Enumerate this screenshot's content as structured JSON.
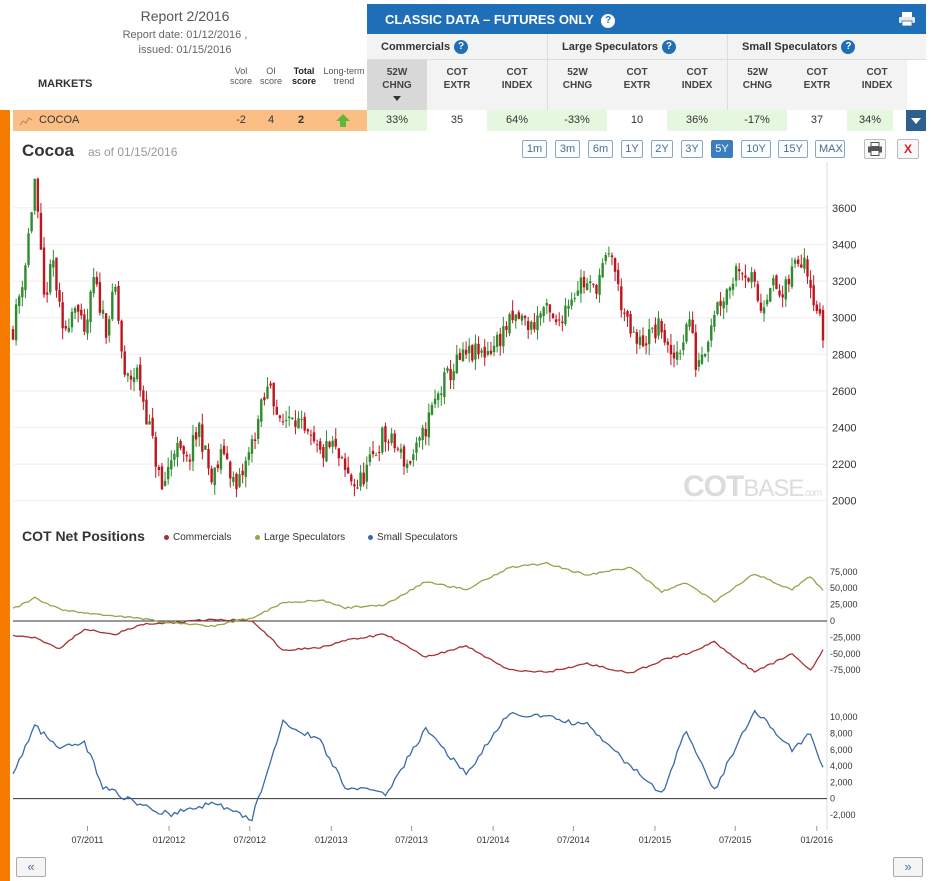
{
  "header": {
    "report_title": "Report 2/2016",
    "report_date": "Report date: 01/12/2016 ,",
    "issued": "issued: 01/15/2016",
    "classic_label": "CLASSIC DATA – FUTURES ONLY",
    "markets_label": "MARKETS"
  },
  "score_headers": {
    "vol": [
      "Vol",
      "score"
    ],
    "oi": [
      "OI",
      "score"
    ],
    "total": [
      "Total",
      "score"
    ],
    "trend": [
      "Long-term",
      "trend"
    ]
  },
  "groups": [
    "Commercials",
    "Large Speculators",
    "Small Speculators"
  ],
  "columns": [
    [
      "52W",
      "CHNG"
    ],
    [
      "COT",
      "EXTR"
    ],
    [
      "COT",
      "INDEX"
    ],
    [
      "52W",
      "CHNG"
    ],
    [
      "COT",
      "EXTR"
    ],
    [
      "COT",
      "INDEX"
    ],
    [
      "52W",
      "CHNG"
    ],
    [
      "COT",
      "EXTR"
    ],
    [
      "COT",
      "INDEX"
    ]
  ],
  "row": {
    "market": "COCOA",
    "vol_score": "-2",
    "oi_score": "4",
    "total_score": "2",
    "values": [
      "33%",
      "35",
      "64%",
      "-33%",
      "10",
      "36%",
      "-17%",
      "37",
      "34%"
    ]
  },
  "chart": {
    "title": "Cocoa",
    "as_of": "as of 01/15/2016",
    "ranges": [
      "1m",
      "3m",
      "6m",
      "1Y",
      "2Y",
      "3Y",
      "5Y",
      "10Y",
      "15Y",
      "MAX"
    ],
    "active_range": "5Y",
    "close_label": "X",
    "watermark_left": "COT",
    "watermark_right": "BASE",
    "watermark_suffix": ".com",
    "cot_title": "COT Net Positions",
    "nav_prev": "«",
    "nav_next": "»"
  },
  "colors": {
    "header_blue": "#1e6fb8",
    "row_orange": "#fbbf85",
    "side_orange": "#f57c00",
    "up_candle": "#2e8b2e",
    "down_candle": "#c0141e",
    "commercials": "#a83232",
    "large_specs": "#8fa84a",
    "small_specs": "#3b6aa8"
  },
  "chart_data": [
    {
      "type": "candlestick",
      "title": "Cocoa",
      "ylim": [
        1960,
        3780
      ],
      "yticks": [
        2000,
        2200,
        2400,
        2600,
        2800,
        3000,
        3200,
        3400,
        3600
      ],
      "x_start": "2011-01-14",
      "x_end": "2016-01-15",
      "points_per_week": 1,
      "anchors": [
        [
          "2011-01-14",
          2940
        ],
        [
          "2011-02-11",
          3300
        ],
        [
          "2011-03-04",
          3750
        ],
        [
          "2011-03-25",
          3100
        ],
        [
          "2011-04-15",
          3300
        ],
        [
          "2011-05-06",
          2900
        ],
        [
          "2011-06-03",
          3100
        ],
        [
          "2011-06-24",
          2880
        ],
        [
          "2011-07-15",
          3200
        ],
        [
          "2011-08-12",
          2950
        ],
        [
          "2011-09-02",
          3150
        ],
        [
          "2011-09-23",
          2650
        ],
        [
          "2011-10-21",
          2700
        ],
        [
          "2011-11-18",
          2400
        ],
        [
          "2011-12-16",
          2050
        ],
        [
          "2012-01-13",
          2300
        ],
        [
          "2012-02-10",
          2200
        ],
        [
          "2012-03-09",
          2400
        ],
        [
          "2012-04-06",
          2100
        ],
        [
          "2012-05-04",
          2280
        ],
        [
          "2012-06-01",
          2050
        ],
        [
          "2012-06-29",
          2250
        ],
        [
          "2012-07-27",
          2500
        ],
        [
          "2012-08-17",
          2650
        ],
        [
          "2012-09-07",
          2400
        ],
        [
          "2012-10-05",
          2500
        ],
        [
          "2012-11-02",
          2350
        ],
        [
          "2012-12-07",
          2250
        ],
        [
          "2013-01-04",
          2300
        ],
        [
          "2013-02-01",
          2150
        ],
        [
          "2013-03-01",
          2080
        ],
        [
          "2013-03-29",
          2200
        ],
        [
          "2013-04-26",
          2350
        ],
        [
          "2013-05-24",
          2300
        ],
        [
          "2013-06-21",
          2200
        ],
        [
          "2013-07-19",
          2300
        ],
        [
          "2013-08-16",
          2500
        ],
        [
          "2013-09-13",
          2650
        ],
        [
          "2013-10-11",
          2750
        ],
        [
          "2013-11-08",
          2800
        ],
        [
          "2013-12-06",
          2800
        ],
        [
          "2014-01-03",
          2850
        ],
        [
          "2014-01-31",
          2950
        ],
        [
          "2014-02-28",
          3000
        ],
        [
          "2014-03-28",
          2950
        ],
        [
          "2014-04-25",
          3050
        ],
        [
          "2014-05-23",
          2950
        ],
        [
          "2014-06-20",
          3100
        ],
        [
          "2014-07-18",
          3200
        ],
        [
          "2014-08-15",
          3150
        ],
        [
          "2014-09-12",
          3300
        ],
        [
          "2014-09-26",
          3350
        ],
        [
          "2014-10-10",
          3150
        ],
        [
          "2014-10-31",
          2950
        ],
        [
          "2014-11-21",
          2850
        ],
        [
          "2014-12-19",
          2900
        ],
        [
          "2015-01-16",
          2950
        ],
        [
          "2015-02-06",
          2750
        ],
        [
          "2015-02-27",
          2850
        ],
        [
          "2015-03-20",
          3000
        ],
        [
          "2015-04-03",
          2750
        ],
        [
          "2015-04-24",
          2850
        ],
        [
          "2015-05-15",
          3050
        ],
        [
          "2015-06-12",
          3150
        ],
        [
          "2015-07-10",
          3300
        ],
        [
          "2015-08-07",
          3200
        ],
        [
          "2015-08-28",
          3050
        ],
        [
          "2015-09-18",
          3200
        ],
        [
          "2015-10-16",
          3100
        ],
        [
          "2015-11-13",
          3300
        ],
        [
          "2015-12-04",
          3350
        ],
        [
          "2015-12-18",
          3200
        ],
        [
          "2016-01-08",
          2980
        ],
        [
          "2016-01-15",
          2900
        ]
      ],
      "up_color": "#2e8b2e",
      "down_color": "#c0141e",
      "grid": true
    },
    {
      "type": "line",
      "title": "COT Net Positions",
      "ylim": [
        -90000,
        90000
      ],
      "yticks": [
        -75000,
        -50000,
        -25000,
        0,
        25000,
        50000,
        75000
      ],
      "zero_line": true,
      "series": [
        {
          "name": "Commercials",
          "color": "#a83232",
          "anchors": [
            [
              "2011-01-14",
              -22000
            ],
            [
              "2011-03-04",
              -25000
            ],
            [
              "2011-04-29",
              -42000
            ],
            [
              "2011-06-24",
              -12000
            ],
            [
              "2011-09-02",
              -20000
            ],
            [
              "2011-11-04",
              -5000
            ],
            [
              "2012-01-06",
              -3000
            ],
            [
              "2012-04-06",
              2000
            ],
            [
              "2012-07-06",
              1000
            ],
            [
              "2012-09-14",
              -45000
            ],
            [
              "2012-12-07",
              -40000
            ],
            [
              "2013-02-01",
              -30000
            ],
            [
              "2013-05-03",
              -20000
            ],
            [
              "2013-08-02",
              -55000
            ],
            [
              "2013-11-01",
              -38000
            ],
            [
              "2014-02-07",
              -75000
            ],
            [
              "2014-05-02",
              -78000
            ],
            [
              "2014-08-01",
              -65000
            ],
            [
              "2014-11-07",
              -80000
            ],
            [
              "2015-01-16",
              -60000
            ],
            [
              "2015-03-13",
              -50000
            ],
            [
              "2015-05-15",
              -32000
            ],
            [
              "2015-08-14",
              -78000
            ],
            [
              "2015-11-06",
              -50000
            ],
            [
              "2015-12-18",
              -75000
            ],
            [
              "2016-01-15",
              -44000
            ]
          ]
        },
        {
          "name": "Large Speculators",
          "color": "#8fa84a",
          "anchors": [
            [
              "2011-01-14",
              18000
            ],
            [
              "2011-03-04",
              35000
            ],
            [
              "2011-04-29",
              18000
            ],
            [
              "2011-06-24",
              12000
            ],
            [
              "2011-09-02",
              8000
            ],
            [
              "2011-11-04",
              3000
            ],
            [
              "2012-01-06",
              -2000
            ],
            [
              "2012-04-06",
              -8000
            ],
            [
              "2012-07-06",
              5000
            ],
            [
              "2012-09-14",
              28000
            ],
            [
              "2012-12-07",
              32000
            ],
            [
              "2013-02-01",
              20000
            ],
            [
              "2013-05-03",
              25000
            ],
            [
              "2013-08-02",
              60000
            ],
            [
              "2013-11-01",
              48000
            ],
            [
              "2014-02-07",
              82000
            ],
            [
              "2014-05-02",
              88000
            ],
            [
              "2014-08-01",
              70000
            ],
            [
              "2014-11-07",
              82000
            ],
            [
              "2015-01-16",
              45000
            ],
            [
              "2015-03-13",
              58000
            ],
            [
              "2015-05-15",
              30000
            ],
            [
              "2015-08-14",
              72000
            ],
            [
              "2015-11-06",
              48000
            ],
            [
              "2015-12-18",
              68000
            ],
            [
              "2016-01-15",
              47000
            ]
          ]
        },
        {
          "name": "Small Speculators",
          "color": "#3b6aa8",
          "anchors": [
            [
              "2011-01-14",
              3000
            ],
            [
              "2011-03-04",
              9000
            ],
            [
              "2011-04-29",
              6000
            ],
            [
              "2011-06-24",
              7000
            ],
            [
              "2011-08-05",
              1500
            ],
            [
              "2011-11-04",
              -1000
            ],
            [
              "2012-01-06",
              -2000
            ],
            [
              "2012-04-06",
              -500
            ],
            [
              "2012-07-06",
              -2500
            ],
            [
              "2012-09-14",
              9500
            ],
            [
              "2012-12-07",
              7000
            ],
            [
              "2013-02-01",
              1500
            ],
            [
              "2013-05-03",
              500
            ],
            [
              "2013-08-02",
              8500
            ],
            [
              "2013-11-01",
              3000
            ],
            [
              "2014-02-07",
              10500
            ],
            [
              "2014-05-02",
              10000
            ],
            [
              "2014-08-01",
              9000
            ],
            [
              "2014-11-07",
              4000
            ],
            [
              "2015-01-16",
              500
            ],
            [
              "2015-03-13",
              8500
            ],
            [
              "2015-05-15",
              1000
            ],
            [
              "2015-08-14",
              11000
            ],
            [
              "2015-11-06",
              6000
            ],
            [
              "2015-12-18",
              8000
            ],
            [
              "2016-01-15",
              3500
            ]
          ]
        }
      ]
    }
  ],
  "axes": {
    "price_ticks": [
      "3600",
      "3400",
      "3200",
      "3000",
      "2800",
      "2600",
      "2400",
      "2200",
      "2000"
    ],
    "pos_ticks": [
      "75,000",
      "50,000",
      "25,000",
      "0",
      "-25,000",
      "-50,000",
      "-75,000"
    ],
    "small_ticks": [
      "10,000",
      "8,000",
      "6,000",
      "4,000",
      "2,000",
      "0",
      "-2,000"
    ],
    "x_ticks": [
      "07/2011",
      "01/2012",
      "07/2012",
      "01/2013",
      "07/2013",
      "01/2014",
      "07/2014",
      "01/2015",
      "07/2015",
      "01/2016"
    ]
  }
}
